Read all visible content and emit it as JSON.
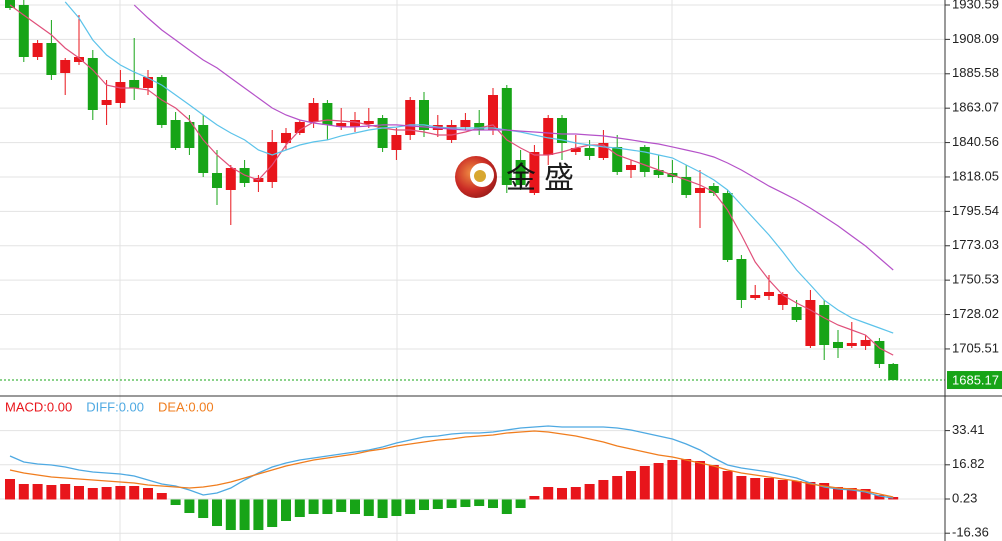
{
  "chart_data": [
    {
      "type": "candlestick",
      "up_color": "#e8151b",
      "down_color": "#17a417",
      "ylim": [
        1675.37,
        1933.86
      ],
      "yticks": [
        1930.59,
        1908.09,
        1885.58,
        1863.07,
        1840.56,
        1818.05,
        1795.54,
        1773.03,
        1750.53,
        1728.02,
        1705.51
      ],
      "grid": true,
      "last_price": 1685.17,
      "ohlc": [
        [
          1933.86,
          1933.86,
          1927.32,
          1928.63
        ],
        [
          1930.59,
          1933.86,
          1893.29,
          1896.56
        ],
        [
          1896.56,
          1907.69,
          1894.6,
          1905.72
        ],
        [
          1905.72,
          1920.77,
          1881.51,
          1884.78
        ],
        [
          1886.09,
          1895.91,
          1871.69,
          1894.6
        ],
        [
          1893.29,
          1924.05,
          1891.33,
          1896.56
        ],
        [
          1895.91,
          1901.14,
          1855.33,
          1861.88
        ],
        [
          1865.15,
          1881.51,
          1852.06,
          1868.42
        ],
        [
          1866.46,
          1888.05,
          1863.19,
          1880.2
        ],
        [
          1881.51,
          1909.0,
          1868.42,
          1876.28
        ],
        [
          1876.28,
          1888.05,
          1871.69,
          1883.47
        ],
        [
          1883.47,
          1884.78,
          1850.1,
          1852.06
        ],
        [
          1855.33,
          1860.57,
          1835.7,
          1837.01
        ],
        [
          1854.03,
          1858.61,
          1832.43,
          1837.01
        ],
        [
          1852.06,
          1858.61,
          1818.03,
          1820.65
        ],
        [
          1820.65,
          1835.7,
          1799.71,
          1810.84
        ],
        [
          1809.53,
          1825.89,
          1786.62,
          1823.92
        ],
        [
          1823.92,
          1829.16,
          1811.49,
          1814.11
        ],
        [
          1814.76,
          1819.34,
          1808.22,
          1817.38
        ],
        [
          1814.76,
          1848.79,
          1810.84,
          1840.94
        ],
        [
          1840.28,
          1850.1,
          1835.7,
          1846.83
        ],
        [
          1846.83,
          1855.33,
          1845.52,
          1854.03
        ],
        [
          1854.03,
          1869.73,
          1850.1,
          1866.46
        ],
        [
          1866.46,
          1868.42,
          1842.25,
          1852.06
        ],
        [
          1850.75,
          1863.19,
          1848.79,
          1853.37
        ],
        [
          1850.75,
          1860.57,
          1847.48,
          1855.33
        ],
        [
          1852.72,
          1863.19,
          1850.1,
          1854.68
        ],
        [
          1856.64,
          1858.61,
          1834.39,
          1837.01
        ],
        [
          1835.7,
          1850.1,
          1829.16,
          1845.52
        ],
        [
          1845.52,
          1870.39,
          1842.25,
          1868.42
        ],
        [
          1868.42,
          1873.66,
          1844.21,
          1848.79
        ],
        [
          1848.79,
          1858.61,
          1844.21,
          1852.06
        ],
        [
          1842.25,
          1855.33,
          1840.28,
          1852.06
        ],
        [
          1850.75,
          1859.92,
          1848.79,
          1855.33
        ],
        [
          1853.37,
          1861.88,
          1845.52,
          1848.79
        ],
        [
          1848.79,
          1876.28,
          1845.52,
          1871.69
        ],
        [
          1876.28,
          1878.24,
          1807.56,
          1812.8
        ],
        [
          1829.16,
          1835.7,
          1809.53,
          1812.8
        ],
        [
          1807.56,
          1838.97,
          1806.25,
          1834.39
        ],
        [
          1832.43,
          1858.61,
          1825.89,
          1856.64
        ],
        [
          1856.64,
          1858.61,
          1829.16,
          1840.28
        ],
        [
          1834.39,
          1845.52,
          1832.43,
          1837.01
        ],
        [
          1837.01,
          1842.25,
          1829.16,
          1831.78
        ],
        [
          1830.47,
          1848.79,
          1829.16,
          1840.28
        ],
        [
          1837.67,
          1845.52,
          1819.34,
          1821.31
        ],
        [
          1822.61,
          1829.16,
          1817.38,
          1825.89
        ],
        [
          1837.67,
          1838.97,
          1818.03,
          1821.31
        ],
        [
          1822.61,
          1832.43,
          1817.38,
          1819.34
        ],
        [
          1820.65,
          1829.16,
          1814.11,
          1818.03
        ],
        [
          1818.03,
          1825.89,
          1804.29,
          1806.25
        ],
        [
          1807.56,
          1822.61,
          1784.66,
          1810.84
        ],
        [
          1812.14,
          1814.11,
          1805.6,
          1807.56
        ],
        [
          1807.56,
          1809.53,
          1762.41,
          1763.72
        ],
        [
          1764.37,
          1766.99,
          1732.31,
          1737.54
        ],
        [
          1738.85,
          1747.36,
          1737.54,
          1740.81
        ],
        [
          1740.16,
          1753.9,
          1737.54,
          1742.78
        ],
        [
          1734.27,
          1742.78,
          1731.0,
          1741.47
        ],
        [
          1732.96,
          1737.54,
          1723.15,
          1724.45
        ],
        [
          1707.44,
          1744.09,
          1706.13,
          1737.54
        ],
        [
          1734.27,
          1737.54,
          1698.28,
          1708.09
        ],
        [
          1710.06,
          1717.91,
          1699.59,
          1706.13
        ],
        [
          1707.44,
          1723.15,
          1706.13,
          1709.4
        ],
        [
          1707.44,
          1714.64,
          1704.82,
          1711.37
        ],
        [
          1710.71,
          1712.68,
          1693.04,
          1695.66
        ],
        [
          1695.66,
          1696.32,
          1685.17,
          1685.17
        ]
      ],
      "lines": [
        {
          "color": "#e0507a",
          "values": [
            1930.6,
            1924.0,
            1917.5,
            1911.0,
            1902.4,
            1895.9,
            1888.1,
            1878.2,
            1876.3,
            1876.3,
            1875.0,
            1868.4,
            1863.2,
            1855.3,
            1842.3,
            1832.4,
            1824.6,
            1819.3,
            1816.1,
            1825.9,
            1839.0,
            1848.8,
            1854.0,
            1855.3,
            1854.7,
            1854.0,
            1852.1,
            1850.1,
            1848.8,
            1848.8,
            1847.5,
            1845.5,
            1845.5,
            1847.5,
            1850.1,
            1852.1,
            1842.3,
            1837.0,
            1832.4,
            1832.4,
            1834.4,
            1837.0,
            1839.0,
            1839.0,
            1832.4,
            1829.2,
            1825.9,
            1822.6,
            1819.3,
            1816.1,
            1812.8,
            1808.2,
            1796.4,
            1780.1,
            1762.4,
            1750.6,
            1740.8,
            1735.6,
            1731.0,
            1725.8,
            1721.2,
            1717.9,
            1714.6,
            1706.1,
            1701.5
          ]
        },
        {
          "color": "#5cc3ea",
          "values": [
            null,
            null,
            null,
            null,
            1932.6,
            1922.1,
            1907.7,
            1897.9,
            1891.3,
            1886.7,
            1882.8,
            1878.2,
            1871.7,
            1865.2,
            1858.6,
            1852.1,
            1846.8,
            1842.3,
            1835.7,
            1832.4,
            1835.7,
            1839.0,
            1841.0,
            1842.3,
            1844.9,
            1846.8,
            1848.8,
            1850.1,
            1850.7,
            1852.1,
            1852.1,
            1850.7,
            1850.1,
            1850.1,
            1850.1,
            1850.1,
            1848.8,
            1847.5,
            1845.5,
            1843.6,
            1842.3,
            1840.3,
            1839.0,
            1837.7,
            1837.0,
            1835.7,
            1834.4,
            1832.4,
            1830.5,
            1825.9,
            1821.3,
            1816.1,
            1809.5,
            1799.7,
            1789.9,
            1780.1,
            1769.0,
            1757.2,
            1747.4,
            1737.5,
            1731.0,
            1725.8,
            1722.5,
            1719.2,
            1715.9
          ]
        },
        {
          "color": "#b552c9",
          "values": [
            null,
            null,
            null,
            null,
            null,
            null,
            null,
            null,
            null,
            1930.6,
            1922.1,
            1914.2,
            1907.7,
            1901.1,
            1894.6,
            1889.4,
            1882.8,
            1876.3,
            1869.7,
            1863.2,
            1858.6,
            1855.3,
            1853.4,
            1852.1,
            1850.8,
            1850.8,
            1851.4,
            1852.1,
            1852.1,
            1851.4,
            1850.8,
            1850.1,
            1849.4,
            1848.8,
            1848.8,
            1848.8,
            1848.8,
            1848.1,
            1847.5,
            1846.8,
            1846.2,
            1846.2,
            1845.5,
            1844.9,
            1843.6,
            1842.3,
            1840.9,
            1839.6,
            1837.7,
            1835.7,
            1833.7,
            1831.1,
            1827.2,
            1822.6,
            1817.4,
            1812.1,
            1807.6,
            1803.0,
            1797.7,
            1791.9,
            1786.0,
            1779.4,
            1772.9,
            1765.0,
            1757.2
          ]
        }
      ]
    },
    {
      "type": "macd",
      "up_color": "#e8151b",
      "down_color": "#17a417",
      "ylim": [
        -20.14,
        49.71
      ],
      "yticks": [
        33.41,
        16.82,
        0.23,
        -16.36
      ],
      "series": [
        {
          "name": "MACD:0.00",
          "color": "#e8151b",
          "style": "bar",
          "values": [
            9.93,
            7.51,
            7.51,
            7.02,
            7.51,
            6.54,
            5.57,
            6.05,
            6.54,
            6.54,
            5.57,
            3.14,
            -2.68,
            -6.56,
            -8.99,
            -12.87,
            -14.81,
            -14.81,
            -14.81,
            -13.35,
            -10.44,
            -8.5,
            -7.05,
            -7.05,
            -6.08,
            -7.05,
            -8.02,
            -8.99,
            -8.02,
            -7.05,
            -5.11,
            -4.62,
            -4.14,
            -3.65,
            -3.17,
            -4.14,
            -7.05,
            -4.14,
            1.69,
            6.05,
            5.57,
            6.05,
            7.51,
            9.45,
            11.39,
            13.81,
            16.24,
            17.69,
            19.15,
            19.63,
            18.66,
            16.72,
            13.81,
            11.39,
            10.42,
            10.42,
            9.45,
            8.96,
            8.48,
            7.99,
            6.05,
            5.57,
            5.08,
            2.17,
            1.2
          ]
        },
        {
          "name": "DIFF:0.00",
          "color": "#4ea9e2",
          "style": "line",
          "values": [
            21.09,
            18.18,
            17.21,
            16.72,
            15.75,
            14.3,
            13.33,
            12.84,
            12.36,
            11.39,
            9.45,
            7.51,
            6.54,
            4.6,
            2.17,
            3.14,
            5.57,
            9.45,
            12.84,
            15.75,
            17.69,
            19.15,
            20.12,
            21.09,
            22.06,
            23.03,
            24.0,
            25.46,
            27.4,
            28.85,
            30.31,
            30.79,
            31.76,
            32.25,
            32.25,
            32.73,
            33.7,
            34.67,
            35.16,
            35.64,
            35.16,
            35.16,
            35.16,
            35.16,
            34.67,
            33.7,
            32.25,
            30.79,
            29.34,
            26.91,
            24.0,
            20.12,
            16.72,
            15.27,
            14.3,
            13.33,
            11.87,
            10.42,
            7.99,
            6.05,
            5.08,
            4.6,
            3.63,
            1.69,
            0.72
          ]
        },
        {
          "name": "DEA:0.00",
          "color": "#f07d1e",
          "style": "line",
          "values": [
            14.3,
            12.84,
            11.87,
            10.9,
            10.42,
            9.93,
            9.45,
            8.96,
            8.48,
            7.99,
            7.02,
            6.54,
            6.05,
            5.57,
            6.05,
            7.02,
            8.48,
            10.42,
            12.36,
            14.3,
            16.24,
            17.69,
            19.15,
            20.12,
            21.09,
            22.06,
            23.51,
            24.49,
            25.94,
            26.91,
            27.88,
            28.85,
            29.34,
            30.31,
            30.79,
            31.28,
            32.25,
            32.73,
            33.22,
            32.73,
            31.76,
            30.79,
            29.34,
            27.88,
            25.94,
            24.49,
            23.03,
            21.57,
            20.6,
            19.15,
            17.69,
            16.24,
            14.3,
            12.84,
            11.87,
            10.9,
            9.93,
            8.96,
            7.51,
            6.54,
            5.57,
            5.08,
            4.11,
            2.66,
            1.2
          ]
        }
      ]
    }
  ],
  "watermark": "金盛"
}
